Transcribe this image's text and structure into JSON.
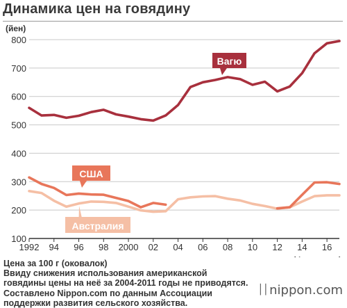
{
  "title": "Динамика цен на говядину",
  "notes": [
    "Цена за 100 г (оковалок)",
    "Ввиду снижения использования американской",
    "говядины цены на неё за 2004-2011 годы не приводятся.",
    "Составлено Nippon.com по данным Ассоциации",
    "поддержки развития сельского хозяйства."
  ],
  "logo": "nippon.com",
  "colors": {
    "wagyu": "#a8303d",
    "usa": "#e8765a",
    "australia": "#f5bfa5",
    "grid": "#c8c8c8",
    "axis": "#333333"
  },
  "chart_data": {
    "type": "line",
    "title": "Динамика цен на говядину",
    "ylabel": "(йен)",
    "xlabel": "(фин. годы)",
    "ylim": [
      100,
      800
    ],
    "yticks": [
      100,
      200,
      300,
      400,
      500,
      600,
      700,
      800
    ],
    "xlim": [
      1992,
      2017
    ],
    "xticks": [
      1992,
      1994,
      1996,
      1998,
      2000,
      2002,
      2004,
      2006,
      2008,
      2010,
      2012,
      2014,
      2016
    ],
    "xtick_labels": [
      "1992",
      "94",
      "96",
      "98",
      "2000",
      "02",
      "04",
      "06",
      "08",
      "10",
      "12",
      "14",
      "16"
    ],
    "grid": true,
    "series": [
      {
        "name": "Вагю",
        "color_key": "wagyu",
        "x": [
          1992,
          1993,
          1994,
          1995,
          1996,
          1997,
          1998,
          1999,
          2000,
          2001,
          2002,
          2003,
          2004,
          2005,
          2006,
          2007,
          2008,
          2009,
          2010,
          2011,
          2012,
          2013,
          2014,
          2015,
          2016,
          2017
        ],
        "values": [
          560,
          533,
          535,
          525,
          532,
          545,
          553,
          537,
          529,
          520,
          515,
          533,
          570,
          633,
          650,
          658,
          668,
          661,
          641,
          652,
          618,
          635,
          682,
          752,
          787,
          795
        ]
      },
      {
        "name": "США",
        "color_key": "usa",
        "segments": [
          {
            "x": [
              1992,
              1993,
              1994,
              1995,
              1996,
              1997,
              1998,
              1999,
              2000,
              2001,
              2002,
              2003
            ],
            "values": [
              315,
              292,
              278,
              253,
              258,
              255,
              254,
              243,
              232,
              210,
              225,
              219
            ]
          },
          {
            "x": [
              2012,
              2013,
              2014,
              2015,
              2016,
              2017
            ],
            "values": [
              206,
              210,
              254,
              297,
              298,
              292
            ]
          }
        ]
      },
      {
        "name": "Австралия",
        "color_key": "australia",
        "x": [
          1992,
          1993,
          1994,
          1995,
          1996,
          1997,
          1998,
          1999,
          2000,
          2001,
          2002,
          2003,
          2004,
          2005,
          2006,
          2007,
          2008,
          2009,
          2010,
          2011,
          2012,
          2013,
          2014,
          2015,
          2016,
          2017
        ],
        "values": [
          267,
          260,
          233,
          212,
          223,
          230,
          229,
          225,
          212,
          199,
          194,
          196,
          238,
          245,
          248,
          249,
          240,
          234,
          222,
          214,
          205,
          210,
          230,
          249,
          252,
          252
        ]
      }
    ],
    "labels": [
      {
        "text": "Вагю",
        "series": "wagyu"
      },
      {
        "text": "США",
        "series": "usa"
      },
      {
        "text": "Австралия",
        "series": "australia"
      }
    ]
  }
}
